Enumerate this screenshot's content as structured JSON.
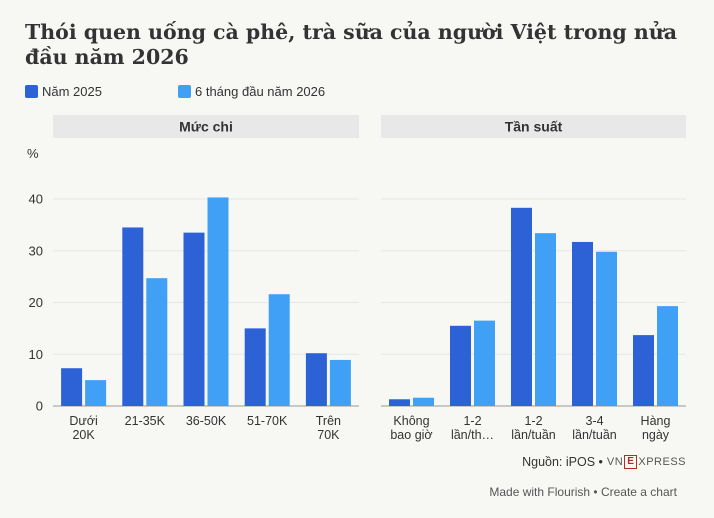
{
  "title": "Thói quen uống cà phê, trà sữa của người Việt trong nửa đầu năm 2026",
  "legend": [
    {
      "name": "Năm 2025",
      "color": "#2d62d7"
    },
    {
      "name": "6 tháng đầu năm 2026",
      "color": "#3fa0f5"
    }
  ],
  "chart_data": [
    {
      "type": "bar",
      "title": "Mức chi",
      "ylabel": "%",
      "ylim": [
        0,
        45
      ],
      "yticks": [
        0,
        10,
        20,
        30,
        40
      ],
      "grid": true,
      "categories": [
        [
          "Dưới",
          "20K"
        ],
        [
          "21-35K"
        ],
        [
          "36-50K"
        ],
        [
          "51-70K"
        ],
        [
          "Trên",
          "70K"
        ]
      ],
      "series": [
        {
          "name": "Năm 2025",
          "values": [
            7.3,
            34.5,
            33.5,
            15.0,
            10.2
          ]
        },
        {
          "name": "6 tháng đầu năm 2026",
          "values": [
            5.0,
            24.7,
            40.3,
            21.6,
            8.9
          ]
        }
      ]
    },
    {
      "type": "bar",
      "title": "Tần suất",
      "ylim": [
        0,
        45
      ],
      "yticks": [
        0,
        10,
        20,
        30,
        40
      ],
      "grid": true,
      "categories": [
        [
          "Không",
          "bao giờ"
        ],
        [
          "1-2",
          "lần/th…"
        ],
        [
          "1-2",
          "lần/tuần"
        ],
        [
          "3-4",
          "lần/tuần"
        ],
        [
          "Hàng",
          "ngày"
        ]
      ],
      "series": [
        {
          "name": "Năm 2025",
          "values": [
            1.3,
            15.5,
            38.3,
            31.7,
            13.7
          ]
        },
        {
          "name": "6 tháng đầu năm 2026",
          "values": [
            1.6,
            16.5,
            33.4,
            29.8,
            19.3
          ]
        }
      ]
    }
  ],
  "source": {
    "text": "Nguồn: iPOS •",
    "logo_left": "VN",
    "logo_box": "E",
    "logo_right": "XPRESS"
  },
  "footer": "Made with Flourish • Create a chart"
}
